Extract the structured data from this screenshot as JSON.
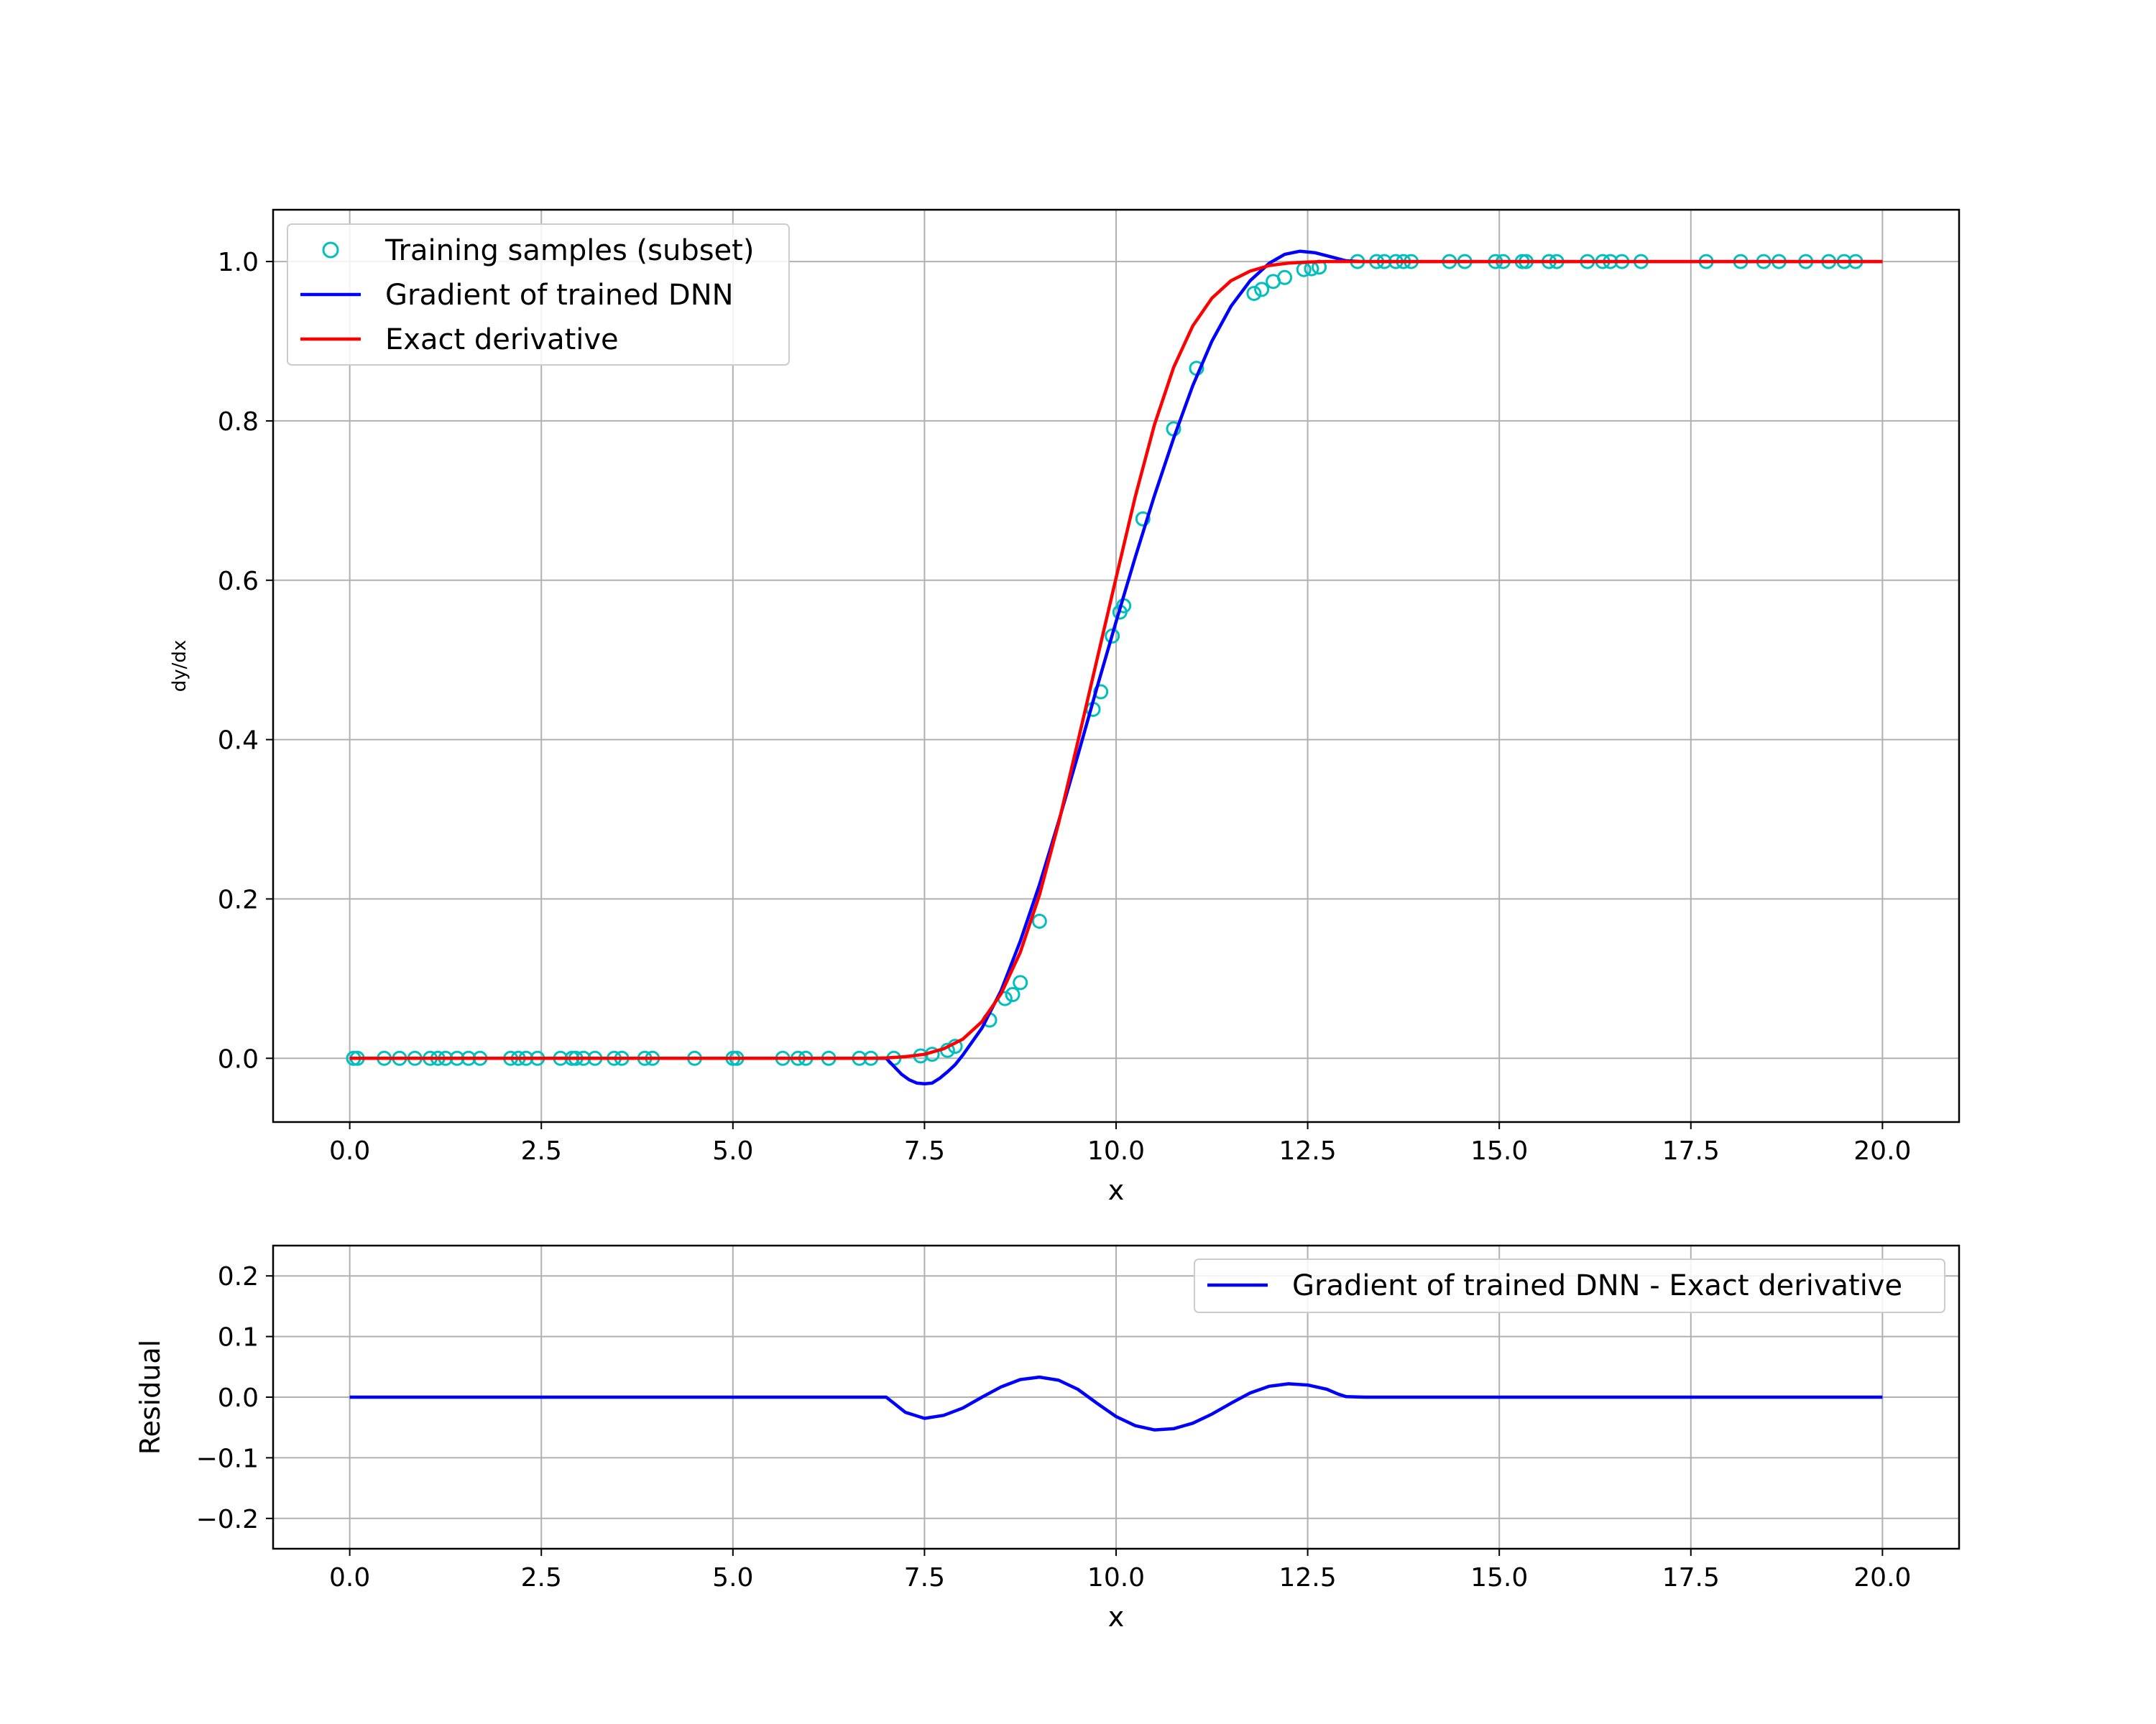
{
  "chart_data": [
    {
      "type": "line",
      "xlabel": "x",
      "ylabel": "dy/dx",
      "xlim": [
        -1.0,
        21.0
      ],
      "ylim": [
        -0.08,
        1.065
      ],
      "xticks": [
        0.0,
        2.5,
        5.0,
        7.5,
        10.0,
        12.5,
        15.0,
        17.5,
        20.0
      ],
      "xtick_labels": [
        "0.0",
        "2.5",
        "5.0",
        "7.5",
        "10.0",
        "12.5",
        "15.0",
        "17.5",
        "20.0"
      ],
      "yticks": [
        0.0,
        0.2,
        0.4,
        0.6,
        0.8,
        1.0
      ],
      "ytick_labels": [
        "0.0",
        "0.2",
        "0.4",
        "0.6",
        "0.8",
        "1.0"
      ],
      "grid": true,
      "legend_position": "top-left",
      "series": [
        {
          "name": "Training samples (subset)",
          "kind": "scatter",
          "marker": "open-circle",
          "color": "#00bfbf",
          "x": [
            0.05,
            0.1,
            0.45,
            0.65,
            0.85,
            1.05,
            1.15,
            1.25,
            1.4,
            1.55,
            1.7,
            2.1,
            2.2,
            2.3,
            2.45,
            2.75,
            2.9,
            2.95,
            3.05,
            3.2,
            3.45,
            3.55,
            3.85,
            3.95,
            4.5,
            5.0,
            5.05,
            5.65,
            5.85,
            5.95,
            6.25,
            6.65,
            6.8,
            7.1,
            7.45,
            7.6,
            7.8,
            7.9,
            8.35,
            8.55,
            8.65,
            8.75,
            9.0,
            9.7,
            9.8,
            9.95,
            10.05,
            10.1,
            10.35,
            10.75,
            11.05,
            11.8,
            11.9,
            12.05,
            12.2,
            12.45,
            12.55,
            12.65,
            13.15,
            13.4,
            13.5,
            13.65,
            13.75,
            13.85,
            14.35,
            14.55,
            14.95,
            15.05,
            15.3,
            15.35,
            15.65,
            15.75,
            16.15,
            16.35,
            16.45,
            16.6,
            16.85,
            17.7,
            18.15,
            18.45,
            18.65,
            19.0,
            19.3,
            19.5,
            19.65
          ],
          "y": [
            0.0,
            0.0,
            0.0,
            0.0,
            0.0,
            0.0,
            0.0,
            0.0,
            0.0,
            0.0,
            0.0,
            0.0,
            0.0,
            0.0,
            0.0,
            0.0,
            0.0,
            0.0,
            0.0,
            0.0,
            0.0,
            0.0,
            0.0,
            0.0,
            0.0,
            0.0,
            0.0,
            0.0,
            0.0,
            0.0,
            0.0,
            0.0,
            0.0,
            0.0,
            0.003,
            0.005,
            0.01,
            0.015,
            0.048,
            0.075,
            0.08,
            0.095,
            0.172,
            0.438,
            0.46,
            0.53,
            0.56,
            0.568,
            0.677,
            0.79,
            0.866,
            0.96,
            0.965,
            0.975,
            0.98,
            0.99,
            0.991,
            0.993,
            1.0,
            1.0,
            1.0,
            1.0,
            1.0,
            1.0,
            1.0,
            1.0,
            1.0,
            1.0,
            1.0,
            1.0,
            1.0,
            1.0,
            1.0,
            1.0,
            1.0,
            1.0,
            1.0,
            1.0,
            1.0,
            1.0,
            1.0,
            1.0,
            1.0,
            1.0,
            1.0
          ]
        },
        {
          "name": "Gradient of trained DNN",
          "kind": "line",
          "color": "#0000ff",
          "x": [
            0.0,
            6.9,
            7.0,
            7.1,
            7.2,
            7.3,
            7.4,
            7.5,
            7.6,
            7.7,
            7.8,
            7.9,
            8.0,
            8.25,
            8.5,
            8.75,
            9.0,
            9.25,
            9.5,
            9.75,
            10.0,
            10.25,
            10.5,
            10.75,
            11.0,
            11.25,
            11.5,
            11.75,
            12.0,
            12.2,
            12.4,
            12.6,
            12.8,
            13.0,
            13.2,
            13.5,
            20.0
          ],
          "y": [
            0.0,
            0.0,
            0.0,
            -0.01,
            -0.02,
            -0.027,
            -0.031,
            -0.032,
            -0.031,
            -0.025,
            -0.017,
            -0.008,
            0.004,
            0.038,
            0.085,
            0.147,
            0.218,
            0.297,
            0.38,
            0.465,
            0.548,
            0.629,
            0.706,
            0.778,
            0.844,
            0.9,
            0.944,
            0.976,
            0.998,
            1.009,
            1.013,
            1.011,
            1.006,
            1.001,
            1.0,
            1.0,
            1.0
          ]
        },
        {
          "name": "Exact derivative",
          "kind": "line",
          "color": "#ff0000",
          "x": [
            0.0,
            6.8,
            7.0,
            7.25,
            7.5,
            7.75,
            8.0,
            8.25,
            8.5,
            8.75,
            9.0,
            9.25,
            9.5,
            9.75,
            10.0,
            10.25,
            10.5,
            10.75,
            11.0,
            11.25,
            11.5,
            11.75,
            12.0,
            12.25,
            12.5,
            12.75,
            13.0,
            13.25,
            20.0
          ],
          "y": [
            0.0,
            0.0,
            0.0005,
            0.002,
            0.005,
            0.012,
            0.024,
            0.046,
            0.081,
            0.133,
            0.205,
            0.295,
            0.397,
            0.5,
            0.603,
            0.705,
            0.795,
            0.867,
            0.919,
            0.954,
            0.976,
            0.988,
            0.995,
            0.998,
            0.9995,
            1.0,
            1.0,
            1.0,
            1.0
          ]
        }
      ]
    },
    {
      "type": "line",
      "xlabel": "x",
      "ylabel": "Residual",
      "xlim": [
        -1.0,
        21.0
      ],
      "ylim": [
        -0.25,
        0.25
      ],
      "xticks": [
        0.0,
        2.5,
        5.0,
        7.5,
        10.0,
        12.5,
        15.0,
        17.5,
        20.0
      ],
      "xtick_labels": [
        "0.0",
        "2.5",
        "5.0",
        "7.5",
        "10.0",
        "12.5",
        "15.0",
        "17.5",
        "20.0"
      ],
      "yticks": [
        -0.2,
        -0.1,
        0.0,
        0.1,
        0.2
      ],
      "ytick_labels": [
        "−0.2",
        "−0.1",
        "0.0",
        "0.1",
        "0.2"
      ],
      "grid": true,
      "legend_position": "top-right",
      "series": [
        {
          "name": "Gradient of trained DNN - Exact derivative",
          "kind": "line",
          "color": "#0000ff",
          "x": [
            0.0,
            7.0,
            7.1,
            7.25,
            7.5,
            7.75,
            8.0,
            8.25,
            8.5,
            8.75,
            9.0,
            9.25,
            9.5,
            9.75,
            10.0,
            10.25,
            10.5,
            10.75,
            11.0,
            11.25,
            11.5,
            11.75,
            12.0,
            12.25,
            12.5,
            12.75,
            12.9,
            13.0,
            13.25,
            20.0
          ],
          "y": [
            0.0,
            0.0,
            -0.01,
            -0.025,
            -0.035,
            -0.03,
            -0.018,
            0.0,
            0.017,
            0.029,
            0.033,
            0.028,
            0.013,
            -0.01,
            -0.032,
            -0.047,
            -0.054,
            -0.052,
            -0.043,
            -0.028,
            -0.01,
            0.007,
            0.018,
            0.022,
            0.02,
            0.013,
            0.005,
            0.001,
            0.0,
            0.0
          ]
        }
      ]
    }
  ]
}
